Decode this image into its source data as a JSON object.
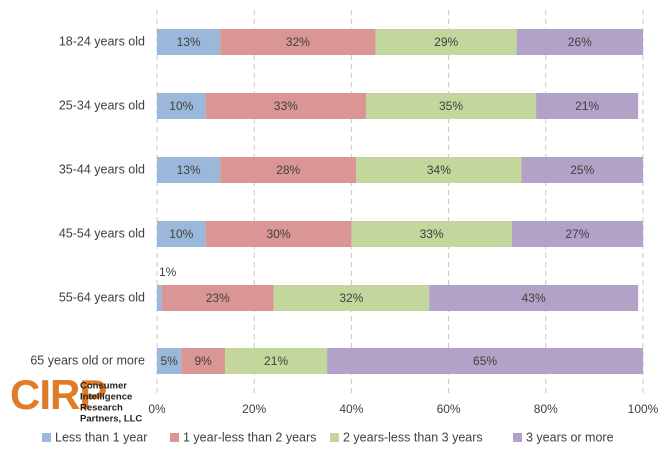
{
  "chart_data": {
    "type": "stacked-bar-horizontal",
    "categories": [
      "18-24 years old",
      "25-34 years old",
      "35-44 years old",
      "45-54 years old",
      "55-64 years old",
      "65 years old or more"
    ],
    "series": [
      {
        "name": "Less than 1 year",
        "color": "#9bb7d9",
        "values": [
          13,
          10,
          13,
          10,
          1,
          5
        ],
        "value_labels": [
          "13%",
          "10%",
          "13%",
          "10%",
          "1%",
          "5%"
        ]
      },
      {
        "name": "1 year-less than 2 years",
        "color": "#d99694",
        "values": [
          32,
          33,
          28,
          30,
          23,
          9
        ],
        "value_labels": [
          "32%",
          "33%",
          "28%",
          "30%",
          "23%",
          "9%"
        ]
      },
      {
        "name": "2 years-less than 3 years",
        "color": "#c3d69b",
        "values": [
          29,
          35,
          34,
          33,
          32,
          21
        ],
        "value_labels": [
          "29%",
          "35%",
          "34%",
          "33%",
          "32%",
          "21%"
        ]
      },
      {
        "name": "3 years or more",
        "color": "#b3a2c7",
        "values": [
          26,
          21,
          25,
          27,
          43,
          65
        ],
        "value_labels": [
          "26%",
          "21%",
          "25%",
          "27%",
          "43%",
          "65%"
        ]
      }
    ],
    "xlim": [
      0,
      100
    ],
    "xticks": [
      {
        "value": 0,
        "label": "0%"
      },
      {
        "value": 20,
        "label": "20%"
      },
      {
        "value": 40,
        "label": "40%"
      },
      {
        "value": 60,
        "label": "60%"
      },
      {
        "value": 80,
        "label": "80%"
      },
      {
        "value": 100,
        "label": "100%"
      }
    ],
    "grid": true,
    "legend": "bottom"
  },
  "logo": {
    "mark": "CIRP",
    "lines": [
      "Consumer",
      "Intelligence",
      "Research",
      "Partners, LLC"
    ]
  }
}
